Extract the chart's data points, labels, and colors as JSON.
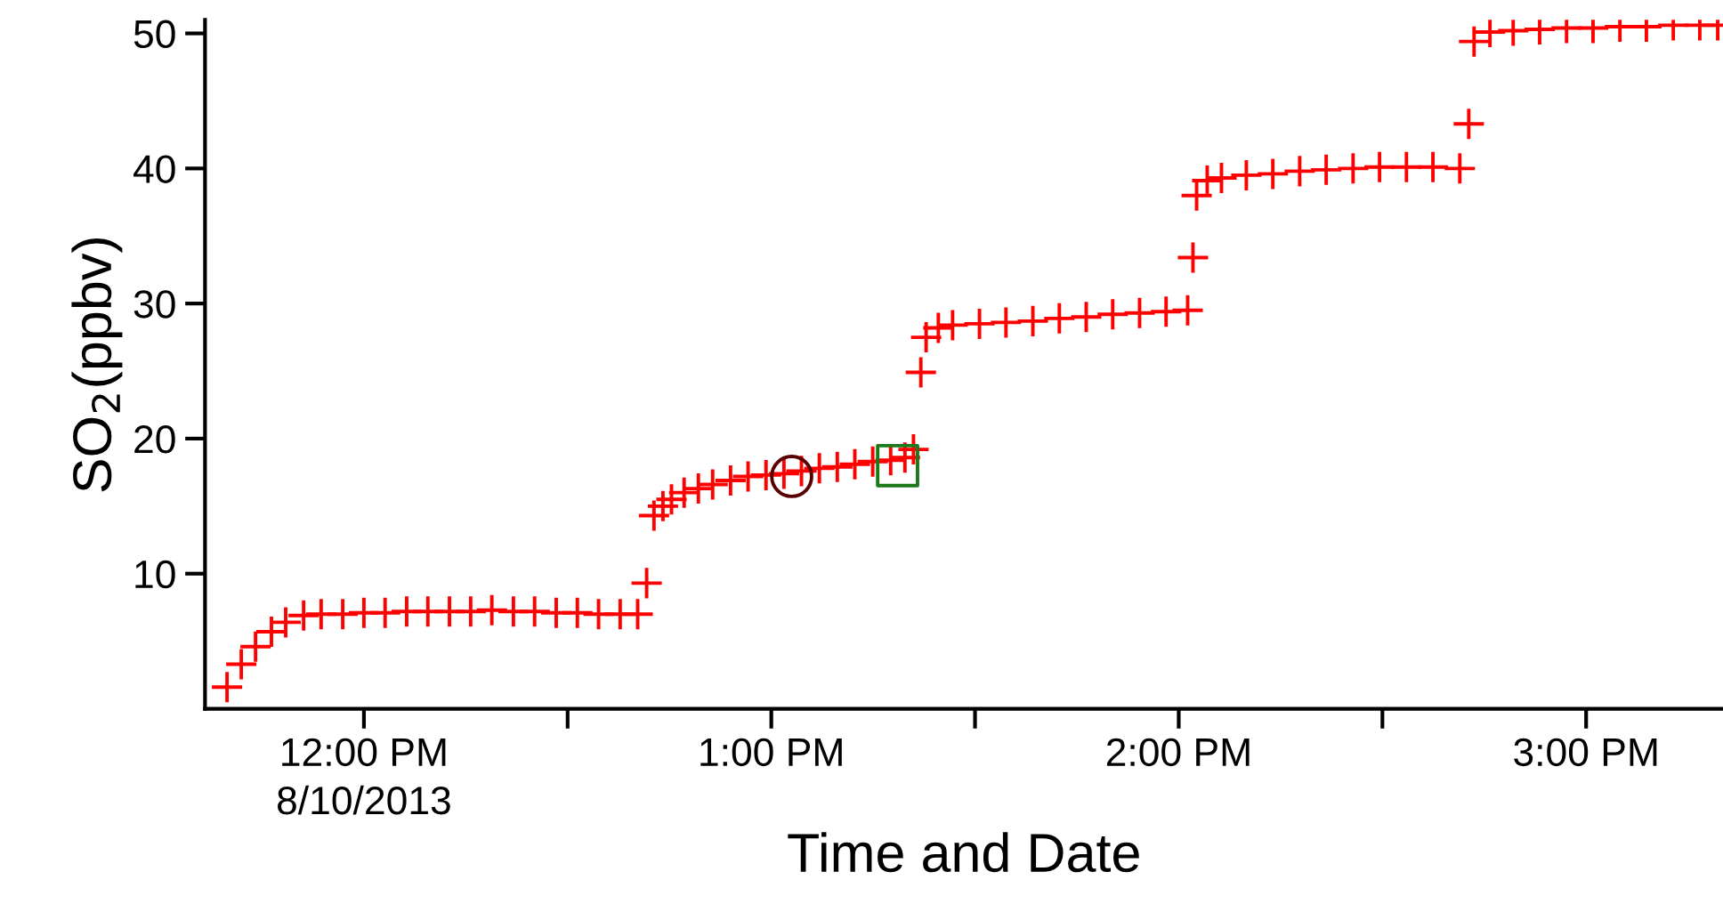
{
  "chart_data": {
    "type": "scatter",
    "xlabel": "Time and Date",
    "ylabel": "SO$_{2}$(ppbv)",
    "xlim": [
      11.61,
      15.336
    ],
    "ylim": [
      0,
      51
    ],
    "xticks": [
      {
        "value": 12,
        "label": "12:00 PM\n8/10/2013"
      },
      {
        "value": 12.5,
        "label": null
      },
      {
        "value": 13,
        "label": "1:00 PM"
      },
      {
        "value": 13.5,
        "label": null
      },
      {
        "value": 14,
        "label": "2:00 PM"
      },
      {
        "value": 14.5,
        "label": null
      },
      {
        "value": 15,
        "label": "3:00 PM"
      }
    ],
    "yticks": [
      10,
      20,
      30,
      40,
      50
    ],
    "grid": false,
    "legend": false,
    "series": [
      {
        "color": "#ff0000",
        "marker": "cross",
        "x": [
          11.664,
          11.699,
          11.734,
          11.773,
          11.808,
          11.852,
          11.895,
          11.948,
          12.0,
          12.052,
          12.105,
          12.157,
          12.21,
          12.262,
          12.314,
          12.367,
          12.419,
          12.472,
          12.524,
          12.576,
          12.629,
          12.672,
          12.694,
          12.712,
          12.734,
          12.755,
          12.786,
          12.821,
          12.856,
          12.9,
          12.943,
          12.987,
          13.031,
          13.074,
          13.118,
          13.162,
          13.205,
          13.249,
          13.293,
          13.328,
          13.349,
          13.367,
          13.38,
          13.41,
          13.445,
          13.511,
          13.576,
          13.642,
          13.707,
          13.773,
          13.838,
          13.904,
          13.969,
          14.022,
          14.035,
          14.044,
          14.07,
          14.105,
          14.166,
          14.231,
          14.297,
          14.362,
          14.428,
          14.493,
          14.559,
          14.624,
          14.69,
          14.712,
          14.725,
          14.764,
          14.821,
          14.886,
          14.952,
          15.017,
          15.083,
          15.148,
          15.214,
          15.279,
          15.323
        ],
        "values": [
          1.6,
          3.3,
          4.6,
          5.7,
          6.4,
          6.9,
          7.0,
          7.0,
          7.1,
          7.1,
          7.2,
          7.2,
          7.2,
          7.2,
          7.3,
          7.2,
          7.2,
          7.1,
          7.1,
          7.0,
          7.0,
          7.0,
          9.3,
          14.3,
          15.0,
          15.5,
          16.0,
          16.3,
          16.6,
          16.9,
          17.2,
          17.3,
          17.4,
          17.6,
          17.8,
          17.9,
          18.1,
          18.3,
          18.4,
          18.6,
          19.2,
          24.9,
          27.5,
          28.2,
          28.4,
          28.5,
          28.6,
          28.7,
          28.9,
          29.0,
          29.2,
          29.3,
          29.4,
          29.5,
          33.4,
          38.0,
          39.1,
          39.3,
          39.5,
          39.6,
          39.8,
          39.9,
          40.0,
          40.1,
          40.1,
          40.1,
          40.0,
          43.3,
          49.4,
          50.1,
          50.2,
          50.3,
          50.4,
          50.4,
          50.5,
          50.5,
          50.6,
          50.6,
          50.6
        ]
      },
      {
        "color": "#5a0000",
        "marker": "circle",
        "x": [
          13.05
        ],
        "values": [
          17.2
        ]
      },
      {
        "color": "#1a7a1a",
        "marker": "square",
        "x": [
          13.31
        ],
        "values": [
          18.0
        ]
      }
    ]
  }
}
